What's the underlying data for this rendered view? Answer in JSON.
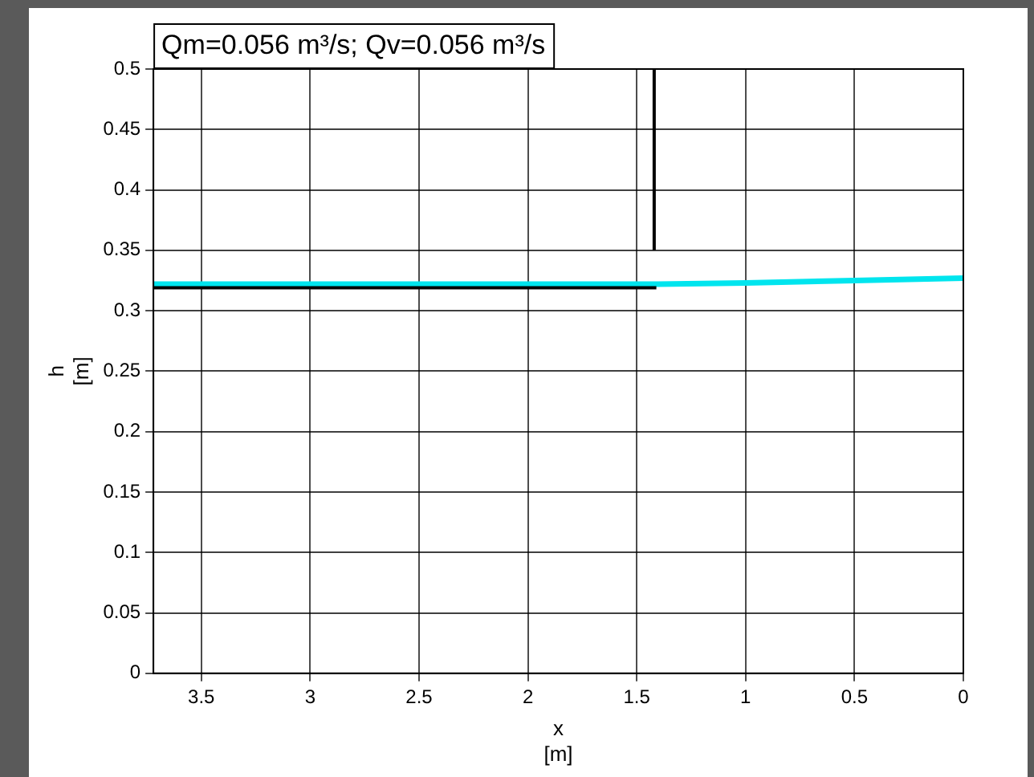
{
  "chart_data": {
    "type": "line",
    "title": "Qm=0.056 m³/s; Qv=0.056 m³/s",
    "xlabel": "x [m]",
    "ylabel": "h [m]",
    "series": [
      {
        "color": "#000000",
        "x": [
          3.72,
          1.41
        ],
        "values": [
          0.319,
          0.319
        ]
      },
      {
        "color": "#00e5ee",
        "x": [
          3.72,
          2,
          1.4,
          1,
          0.5,
          0
        ],
        "values": [
          0.322,
          0.322,
          0.322,
          0.323,
          0.325,
          0.327
        ]
      },
      {
        "color": "#000000",
        "x": [
          1.42,
          1.42
        ],
        "values": [
          0.35,
          0.5
        ]
      }
    ],
    "xlim": [
      3.72,
      0
    ],
    "xticks": [
      3.5,
      3,
      2.5,
      2,
      1.5,
      1,
      0.5,
      0
    ],
    "ylim": [
      0,
      0.5
    ],
    "yticks": [
      0,
      0.05,
      0.1,
      0.15,
      0.2,
      0.25,
      0.3,
      0.35,
      0.4,
      0.45,
      0.5
    ],
    "grid": true,
    "legend": false,
    "line_style": "solid",
    "marker": "none"
  }
}
